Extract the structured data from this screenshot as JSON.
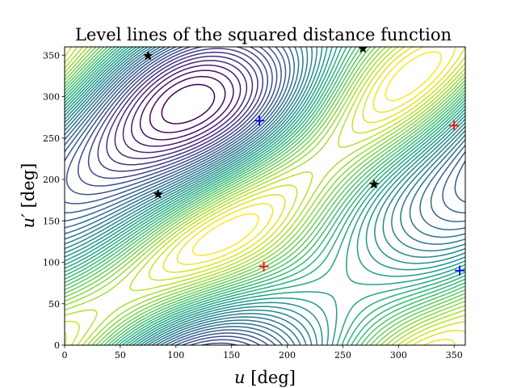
{
  "chart_data": {
    "type": "contour",
    "title": "Level lines of the squared distance function",
    "xlabel": {
      "symbol": "u",
      "unit": "[deg]"
    },
    "ylabel": {
      "symbol": "u′",
      "unit": "[deg]"
    },
    "xlim": [
      0,
      360
    ],
    "ylim": [
      0,
      360
    ],
    "x_ticks": [
      0,
      50,
      100,
      150,
      200,
      250,
      300,
      350
    ],
    "y_ticks": [
      0,
      50,
      100,
      150,
      200,
      250,
      300,
      350
    ],
    "colormap": "viridis",
    "grid": false,
    "contour_levels": 40,
    "markers": [
      {
        "type": "min",
        "symbol": "plus",
        "color": "#0000ff",
        "x": 175,
        "y": 271
      },
      {
        "type": "min",
        "symbol": "plus",
        "color": "#0000ff",
        "x": 355,
        "y": 90
      },
      {
        "type": "max",
        "symbol": "plus",
        "color": "#ff0000",
        "x": 179,
        "y": 95
      },
      {
        "type": "max",
        "symbol": "plus",
        "color": "#ff0000",
        "x": 350,
        "y": 265
      },
      {
        "type": "saddle",
        "symbol": "star",
        "color": "#000000",
        "x": 75,
        "y": 349
      },
      {
        "type": "saddle",
        "symbol": "star",
        "color": "#000000",
        "x": 268,
        "y": 358
      },
      {
        "type": "saddle",
        "symbol": "star",
        "color": "#000000",
        "x": 84,
        "y": 182
      },
      {
        "type": "saddle",
        "symbol": "star",
        "color": "#000000",
        "x": 278,
        "y": 194
      }
    ]
  }
}
